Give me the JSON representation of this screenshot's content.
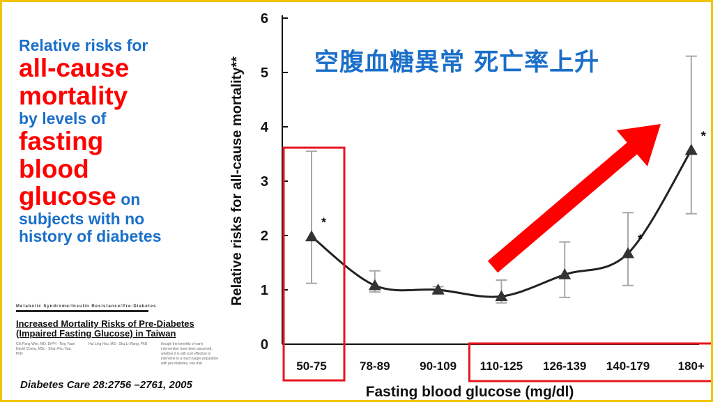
{
  "left_panel": {
    "line1": "Relative risks for",
    "line2": "all-cause",
    "line3": "mortality",
    "line4": "by levels of",
    "line5": "fasting",
    "line6": "blood",
    "line7": "glucose",
    "line7b": " on",
    "line8": "subjects with no",
    "line9": "history of diabetes"
  },
  "paper": {
    "category": "Metabolic Syndrome/Insulin Resistance/Pre-Diabetes",
    "title": "Increased Mortality Risks of Pre-Diabetes (Impaired Fasting Glucose) in Taiwan",
    "col1": "Chi Pang Wen, MD, DrPH · Ting Yuan David Cheng, MSc · Shan Pou Tsai, PhD",
    "col2": "Hui Ling Hsu, MS · Shu Li Wang, PhD",
    "col3": "though the benefits of early intervention have been assumed, whether it is still cost effective to intervene in a much larger population with pre-diabetes, one that"
  },
  "citation": "Diabetes Care 28:2756 –2761, 2005",
  "overlay_title": "空腹血糖異常 死亡率上升",
  "chart_data": {
    "type": "line",
    "xlabel": "Fasting blood glucose (mg/dl)",
    "ylabel": "Relative risks for all-cause mortality**",
    "ylim": [
      0,
      6
    ],
    "yticks": [
      "0",
      "1",
      "2",
      "3",
      "4",
      "5",
      "6"
    ],
    "categories": [
      "50-75",
      "78-89",
      "90-109",
      "110-125",
      "126-139",
      "140-179",
      "180+"
    ],
    "series": [
      {
        "values": [
          1.98,
          1.08,
          1.0,
          0.88,
          1.28,
          1.67,
          3.57
        ],
        "ci_low": [
          1.12,
          0.96,
          0.95,
          0.76,
          0.86,
          1.08,
          2.4
        ],
        "ci_high": [
          3.55,
          1.35,
          1.06,
          1.18,
          1.88,
          2.42,
          5.3
        ],
        "significant": [
          true,
          false,
          false,
          false,
          false,
          true,
          true
        ],
        "significance_marker": "*"
      }
    ],
    "grid": false,
    "colors": {
      "line": "#222222",
      "ci": "#a8a8a8",
      "highlight": "#e8141e",
      "arrow": "#ff0000"
    }
  }
}
